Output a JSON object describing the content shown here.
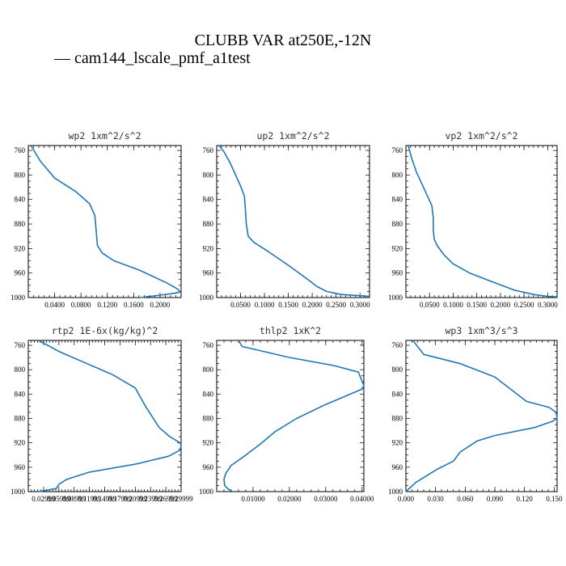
{
  "figure": {
    "title": "CLUBB VAR at250E,-12N",
    "legend": "— cam144_lscale_pmf_a1test",
    "color": "#1f77b4"
  },
  "chart_data": [
    {
      "type": "line",
      "title": "wp2  1xm^2/s^2",
      "xlim": [
        0.0,
        0.232
      ],
      "ylim": [
        1000,
        752
      ],
      "xticks": [
        0.04,
        0.08,
        0.12,
        0.16,
        0.2
      ],
      "xticklabels": [
        "0.0400",
        "0.0800",
        "0.1200",
        "0.1600",
        "0.2000"
      ],
      "yticks": [
        760,
        800,
        840,
        880,
        920,
        960,
        1000
      ],
      "series": [
        {
          "x": [
            0.004,
            0.018,
            0.04,
            0.072,
            0.093,
            0.101,
            0.103,
            0.105,
            0.112,
            0.13,
            0.168,
            0.21,
            0.228,
            0.23,
            0.222,
            0.2,
            0.17
          ],
          "y": [
            752,
            777,
            805,
            827,
            847,
            866,
            890,
            915,
            927,
            940,
            955,
            976,
            987,
            991,
            993,
            996,
            1000
          ]
        }
      ]
    },
    {
      "type": "line",
      "title": "up2  1xm^2/s^2",
      "xlim": [
        0.0,
        0.32
      ],
      "ylim": [
        1000,
        752
      ],
      "xticks": [
        0.05,
        0.1,
        0.15,
        0.2,
        0.25,
        0.3
      ],
      "xticklabels": [
        "0.0500",
        "0.1000",
        "0.1500",
        "0.2000",
        "0.2500",
        "0.3000"
      ],
      "yticks": [
        760,
        800,
        840,
        880,
        920,
        960,
        1000
      ],
      "series": [
        {
          "x": [
            0.005,
            0.015,
            0.028,
            0.05,
            0.058,
            0.06,
            0.062,
            0.066,
            0.078,
            0.108,
            0.155,
            0.19,
            0.21,
            0.23,
            0.26,
            0.3,
            0.32
          ],
          "y": [
            752,
            762,
            780,
            818,
            835,
            855,
            880,
            900,
            910,
            925,
            950,
            970,
            982,
            990,
            995,
            997,
            998
          ]
        }
      ]
    },
    {
      "type": "line",
      "title": "vp2  1xm^2/s^2",
      "xlim": [
        0.0,
        0.32
      ],
      "ylim": [
        1000,
        752
      ],
      "xticks": [
        0.05,
        0.1,
        0.15,
        0.2,
        0.25,
        0.3
      ],
      "xticklabels": [
        "0.0500",
        "0.1000",
        "0.1500",
        "0.2000",
        "0.2500",
        "0.3000"
      ],
      "yticks": [
        760,
        800,
        840,
        880,
        920,
        960,
        1000
      ],
      "series": [
        {
          "x": [
            0.005,
            0.012,
            0.022,
            0.04,
            0.055,
            0.058,
            0.058,
            0.06,
            0.066,
            0.08,
            0.1,
            0.135,
            0.185,
            0.23,
            0.27,
            0.3,
            0.32
          ],
          "y": [
            752,
            772,
            795,
            825,
            850,
            870,
            890,
            905,
            915,
            930,
            945,
            960,
            975,
            988,
            995,
            998,
            999
          ]
        }
      ]
    },
    {
      "type": "line",
      "title": "rtp2  1E-6x(kg/kg)^2",
      "xlim": [
        0.0,
        0.3
      ],
      "ylim": [
        1000,
        752
      ],
      "xticks": [
        0.03,
        0.06,
        0.09,
        0.12,
        0.15,
        0.18,
        0.21,
        0.24,
        0.27,
        0.3
      ],
      "xticklabels": [
        "0.02999",
        "0.05999",
        "0.08999",
        "0.11999",
        "0.14999",
        "0.17999",
        "0.20999",
        "0.23999",
        "0.26999",
        "0.29999"
      ],
      "yticks": [
        760,
        800,
        840,
        880,
        920,
        960,
        1000
      ],
      "series": [
        {
          "x": [
            0.02,
            0.06,
            0.115,
            0.165,
            0.21,
            0.23,
            0.257,
            0.278,
            0.298,
            0.3,
            0.298,
            0.275,
            0.21,
            0.12,
            0.075,
            0.06,
            0.055,
            0.02
          ],
          "y": [
            752,
            770,
            790,
            808,
            830,
            860,
            895,
            910,
            920,
            925,
            932,
            942,
            955,
            968,
            980,
            988,
            995,
            1000
          ]
        }
      ]
    },
    {
      "type": "line",
      "title": "thlp2  1xK^2",
      "xlim": [
        0.0,
        0.0405
      ],
      "ylim": [
        1000,
        752
      ],
      "xticks": [
        0.01,
        0.02,
        0.03,
        0.04
      ],
      "xticklabels": [
        "0.01000",
        "0.02000",
        "0.03000",
        "0.04000"
      ],
      "yticks": [
        760,
        800,
        840,
        880,
        920,
        960,
        1000
      ],
      "series": [
        {
          "x": [
            0.006,
            0.007,
            0.02,
            0.032,
            0.039,
            0.0405,
            0.04,
            0.03,
            0.022,
            0.016,
            0.012,
            0.008,
            0.004,
            0.0025,
            0.002,
            0.0022,
            0.003,
            0.004
          ],
          "y": [
            752,
            762,
            780,
            793,
            804,
            826,
            832,
            857,
            880,
            902,
            922,
            940,
            957,
            970,
            980,
            990,
            995,
            999
          ]
        }
      ]
    },
    {
      "type": "line",
      "title": "wp3  1xm^3/s^3",
      "xlim": [
        0.0,
        0.153
      ],
      "ylim": [
        1000,
        752
      ],
      "xticks": [
        0.0,
        0.03,
        0.06,
        0.09,
        0.12,
        0.15
      ],
      "xticklabels": [
        "0.000",
        "0.030",
        "0.060",
        "0.090",
        "0.120",
        "0.150"
      ],
      "yticks": [
        760,
        800,
        840,
        880,
        920,
        960,
        1000
      ],
      "series": [
        {
          "x": [
            0.007,
            0.018,
            0.055,
            0.09,
            0.122,
            0.145,
            0.152,
            0.153,
            0.148,
            0.13,
            0.09,
            0.072,
            0.055,
            0.048,
            0.032,
            0.01,
            0.0
          ],
          "y": [
            752,
            775,
            790,
            812,
            852,
            862,
            870,
            880,
            885,
            895,
            908,
            917,
            935,
            950,
            963,
            985,
            1000
          ]
        }
      ]
    }
  ]
}
